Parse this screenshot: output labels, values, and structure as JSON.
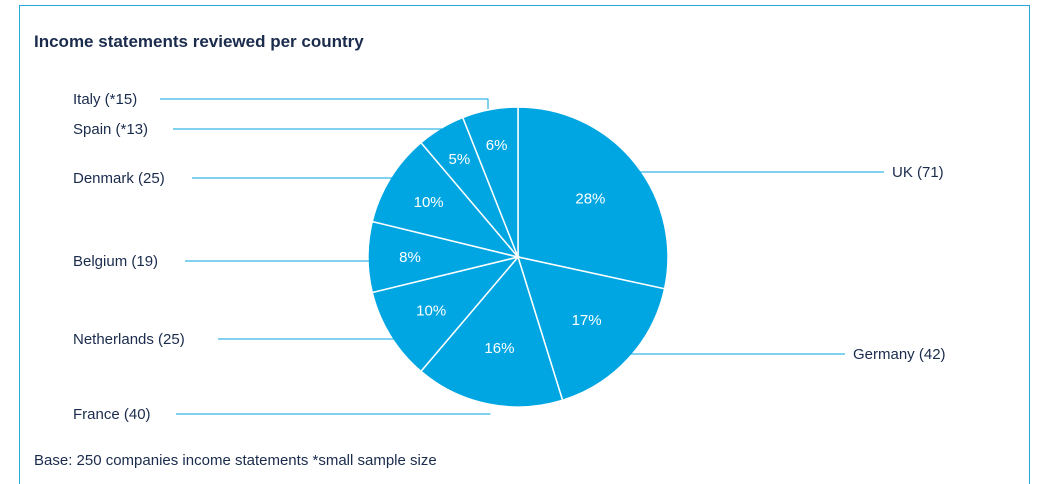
{
  "chart_data": {
    "type": "pie",
    "title": "Income statements reviewed per country",
    "footnote": "Base: 250 companies income statements  *small sample size",
    "slices": [
      {
        "country": "UK",
        "label": "UK (71)",
        "count": 71,
        "percent": 28,
        "percent_label": "28%"
      },
      {
        "country": "Germany",
        "label": "Germany (42)",
        "count": 42,
        "percent": 17,
        "percent_label": "17%"
      },
      {
        "country": "France",
        "label": "France (40)",
        "count": 40,
        "percent": 16,
        "percent_label": "16%"
      },
      {
        "country": "Netherlands",
        "label": "Netherlands (25)",
        "count": 25,
        "percent": 10,
        "percent_label": "10%"
      },
      {
        "country": "Belgium",
        "label": "Belgium (19)",
        "count": 19,
        "percent": 8,
        "percent_label": "8%"
      },
      {
        "country": "Denmark",
        "label": "Denmark (25)",
        "count": 25,
        "percent": 10,
        "percent_label": "10%"
      },
      {
        "country": "Spain",
        "label": "Spain (*13)",
        "count": 13,
        "percent": 5,
        "percent_label": "5%"
      },
      {
        "country": "Italy",
        "label": "Italy (*15)",
        "count": 15,
        "percent": 6,
        "percent_label": "6%"
      }
    ],
    "colors": {
      "slice": "#00a6e2",
      "slice_border": "#ffffff",
      "leader_line": "#00a6e2",
      "frame": "#2aa7d9",
      "text": "#1a2b4c"
    }
  }
}
